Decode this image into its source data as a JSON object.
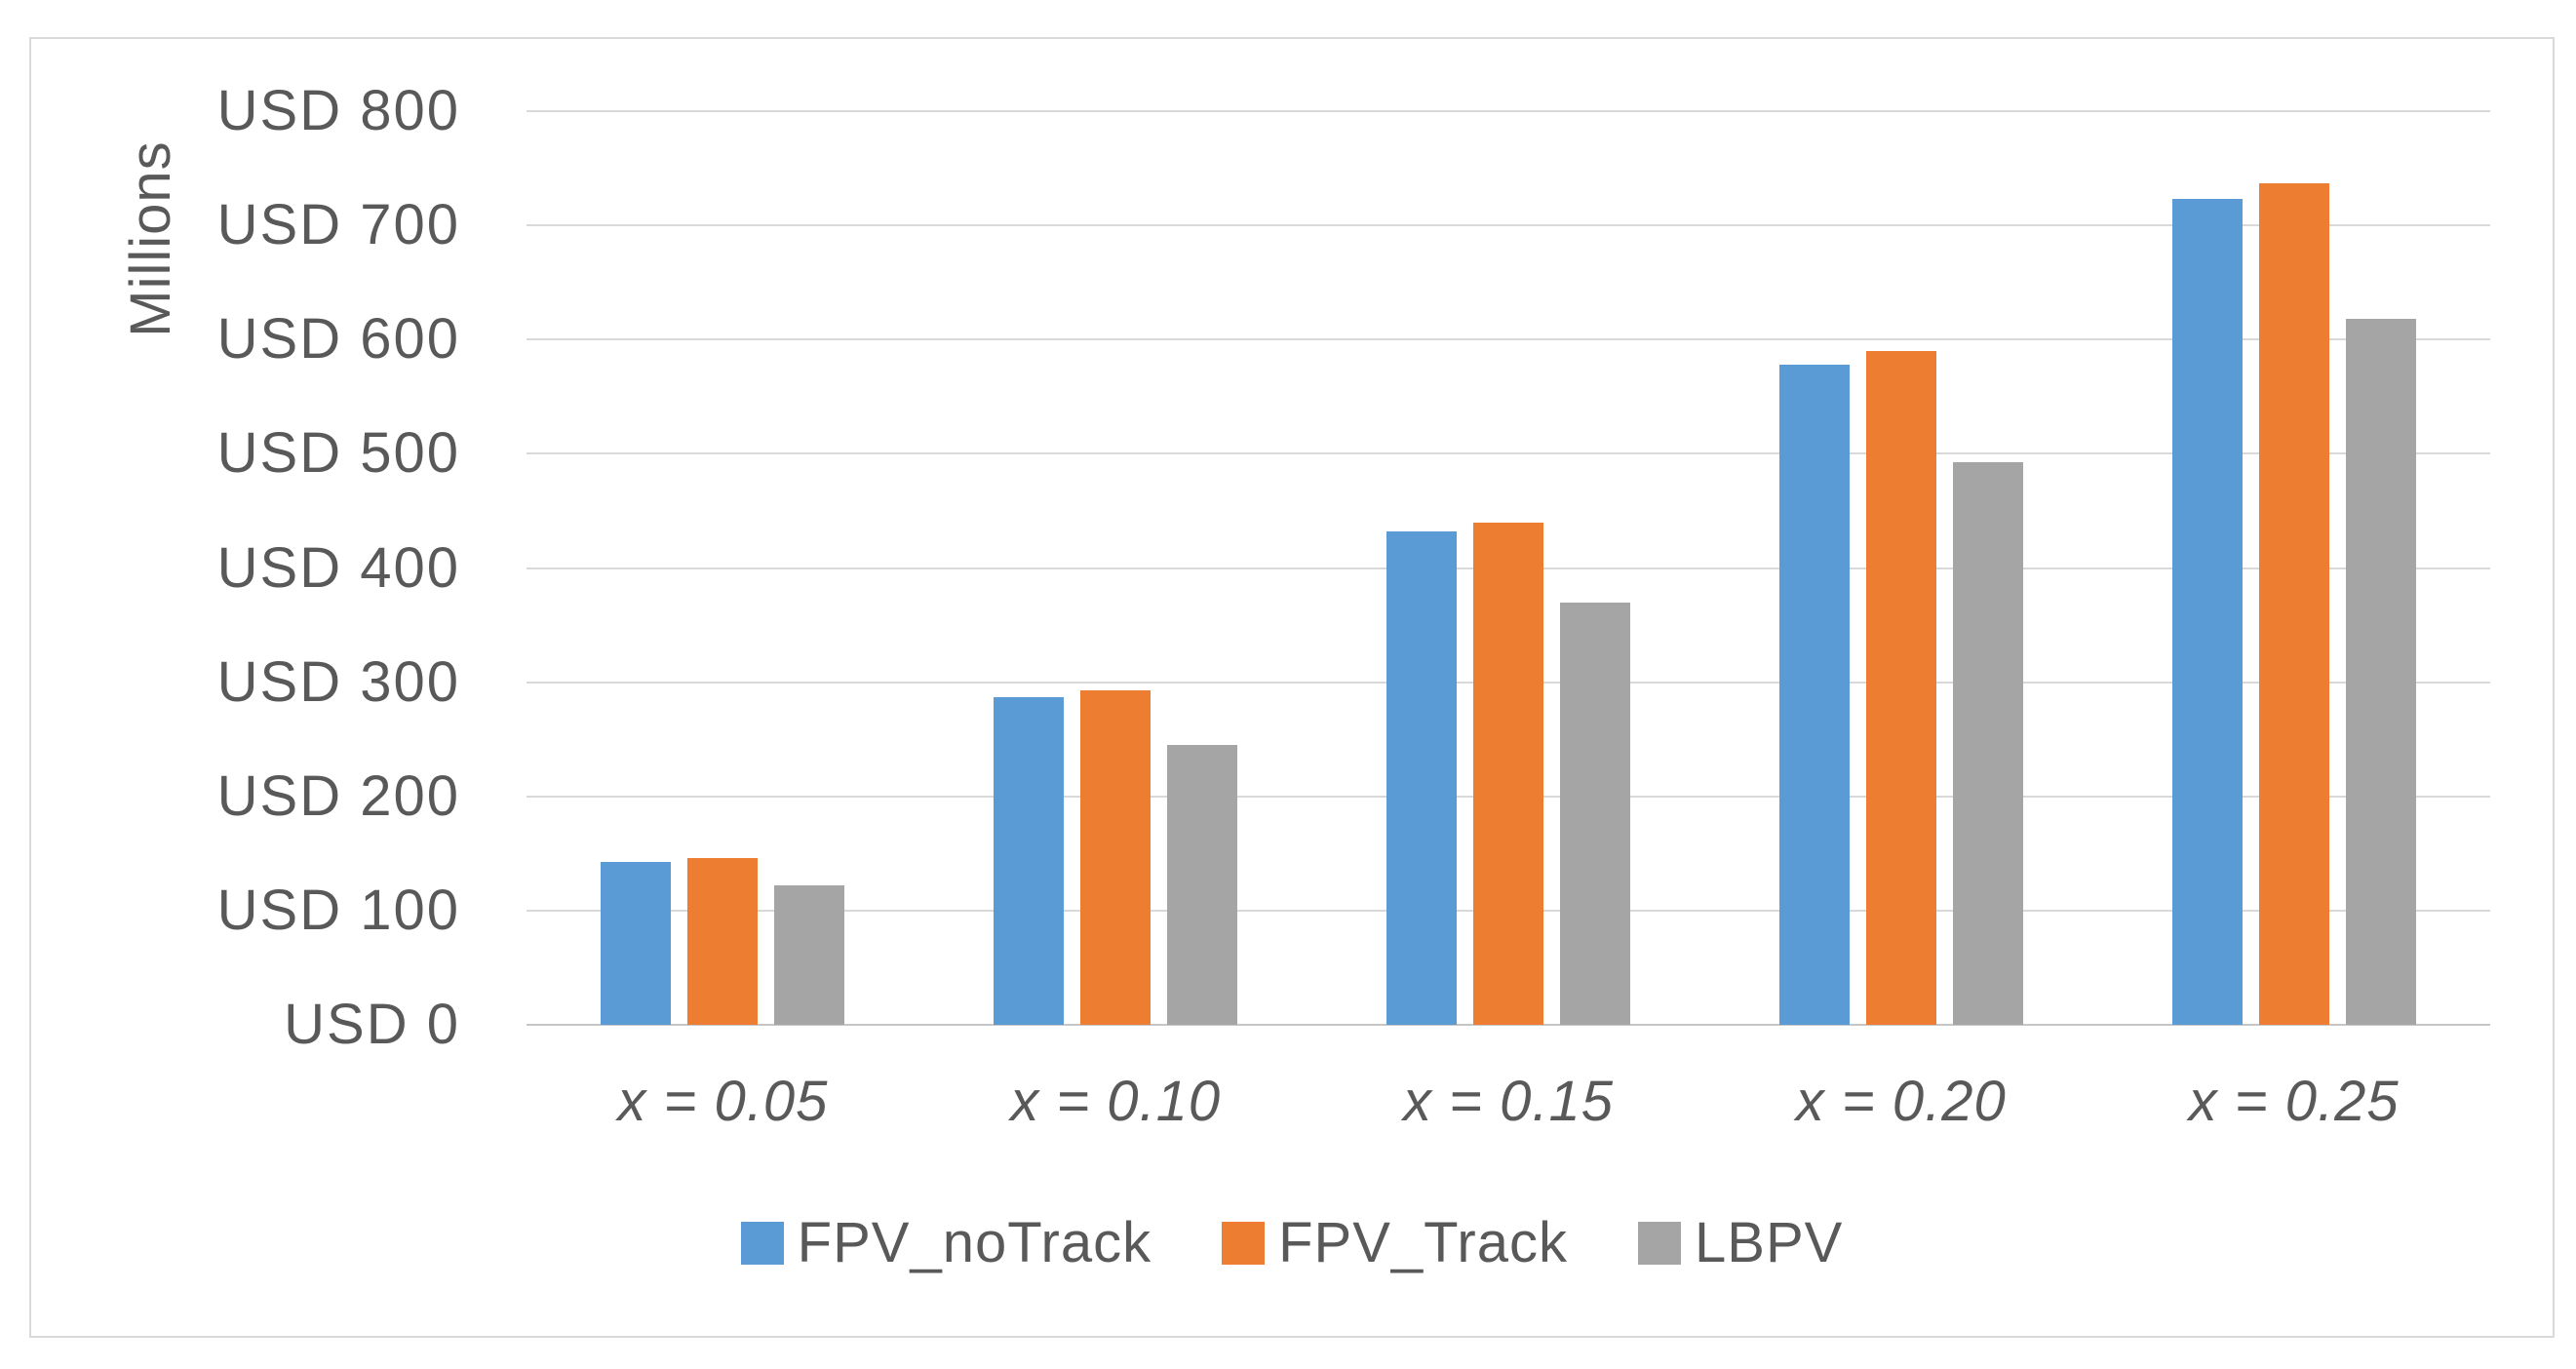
{
  "chart_data": {
    "type": "bar",
    "title": "",
    "ylabel": "Millions",
    "ylim": [
      0,
      800
    ],
    "y_tick_step": 100,
    "yticks": [
      {
        "value": 0,
        "label": "USD 0"
      },
      {
        "value": 100,
        "label": "USD 100"
      },
      {
        "value": 200,
        "label": "USD 200"
      },
      {
        "value": 300,
        "label": "USD 300"
      },
      {
        "value": 400,
        "label": "USD 400"
      },
      {
        "value": 500,
        "label": "USD 500"
      },
      {
        "value": 600,
        "label": "USD 600"
      },
      {
        "value": 700,
        "label": "USD 700"
      },
      {
        "value": 800,
        "label": "USD 800"
      }
    ],
    "categories": [
      "x = 0.05",
      "x = 0.10",
      "x = 0.15",
      "x = 0.20",
      "x = 0.25"
    ],
    "series": [
      {
        "name": "FPV_noTrack",
        "color": "#5B9BD5",
        "values": [
          143,
          287,
          432,
          578,
          723
        ]
      },
      {
        "name": "FPV_Track",
        "color": "#ED7D31",
        "values": [
          146,
          293,
          440,
          590,
          737
        ]
      },
      {
        "name": "LBPV",
        "color": "#A5A5A5",
        "values": [
          122,
          245,
          370,
          493,
          618
        ]
      }
    ],
    "legend_position": "bottom",
    "grid": true,
    "gridline_color": "#D9D9D9",
    "axis_text_color": "#595959",
    "frame_border_color": "#D9D9D9",
    "background_color": "#FFFFFF"
  }
}
